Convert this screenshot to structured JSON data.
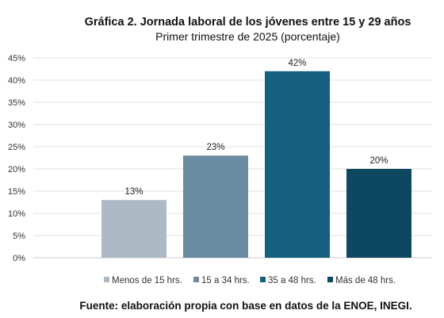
{
  "header": {
    "title": "Gráfica 2. Jornada laboral de los jóvenes entre 15 y 29 años",
    "subtitle": "Primer trimestre de 2025 (porcentaje)"
  },
  "footer": {
    "source": "Fuente: elaboración propia con base en datos de la ENOE, INEGI."
  },
  "chart_data": {
    "type": "bar",
    "title": "Gráfica 2. Jornada laboral de los jóvenes entre 15 y 29 años",
    "subtitle": "Primer trimestre de 2025 (porcentaje)",
    "categories": [
      "Menos de 15 hrs.",
      "15 a 34 hrs.",
      "35 a 48 hrs.",
      "Más de 48 hrs."
    ],
    "values": [
      13,
      23,
      42,
      20
    ],
    "data_labels": [
      "13%",
      "23%",
      "42%",
      "20%"
    ],
    "colors": [
      "#adb9c4",
      "#6a8aa0",
      "#155f80",
      "#0e4760"
    ],
    "ylim": [
      0,
      45
    ],
    "yticks": [
      0,
      5,
      10,
      15,
      20,
      25,
      30,
      35,
      40,
      45
    ],
    "ytick_labels": [
      "0%",
      "5%",
      "10%",
      "15%",
      "20%",
      "25%",
      "30%",
      "35%",
      "40%",
      "45%"
    ],
    "grid": true,
    "legend_position": "bottom",
    "xlabel": "",
    "ylabel": ""
  }
}
